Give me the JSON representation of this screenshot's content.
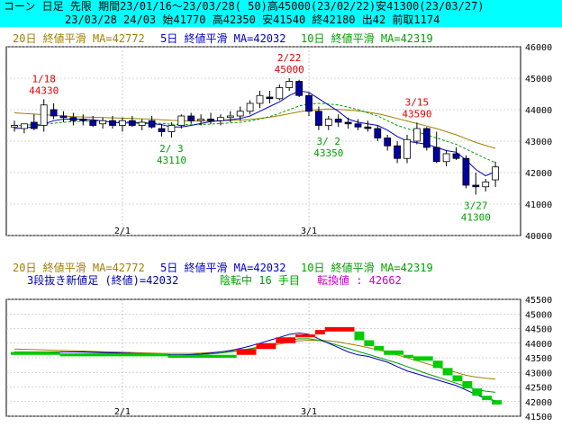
{
  "header": {
    "line1": "コーン 日足 先限 期間23/01/16～23/03/28( 50)高45000(23/02/22)安41300(23/03/27)",
    "line2": "23/03/28 24/03 始41770 高42350 安41540 終42180 出42 前取1174"
  },
  "colors": {
    "up_candle": "#ffffff",
    "down_candle": "#0000a0",
    "ma20": "#a08000",
    "ma5": "#0000c0",
    "ma10": "#00a000",
    "red_annotation": "#e00000",
    "green_annotation": "#00a000",
    "brick_up": "#ff0000",
    "brick_down": "#00cc00",
    "brick_turn": "#cc00cc",
    "header_bg": "#00ffff"
  },
  "upper_legend": {
    "ma20": "20日 終値平滑 MA=42772",
    "ma5": "5日 終値平滑 MA=42032",
    "ma10": "10日 終値平滑 MA=42319"
  },
  "lower_legend": {
    "ma20": "20日 終値平滑 MA=42772",
    "ma5": "5日 終値平滑 MA=42032",
    "ma10": "10日 終値平滑 MA=42319",
    "sanbon_label": "3段抜き新値足 (終値)=42032",
    "sanbon_state": "陰転中  16 手目",
    "sanbon_turn": "転換値 : 42662"
  },
  "annotations": [
    {
      "date": "1/18",
      "value": "44330",
      "color": "red",
      "position": "above"
    },
    {
      "date": "2/ 3",
      "value": "43110",
      "color": "green",
      "position": "below"
    },
    {
      "date": "2/22",
      "value": "45000",
      "color": "red",
      "position": "above"
    },
    {
      "date": "3/ 2",
      "value": "43350",
      "color": "green",
      "position": "below"
    },
    {
      "date": "3/15",
      "value": "43590",
      "color": "red",
      "position": "above"
    },
    {
      "date": "3/27",
      "value": "41300",
      "color": "green",
      "position": "below"
    }
  ],
  "chart_data": [
    {
      "type": "candlestick",
      "x_labels": [
        "2/1",
        "3/1"
      ],
      "ylim": [
        40000,
        46000
      ],
      "yticks": [
        "46000",
        "45000",
        "44000",
        "43000",
        "42000",
        "41000",
        "40000"
      ],
      "grid": true,
      "candles": [
        {
          "o": 43450,
          "h": 43650,
          "l": 43300,
          "c": 43500
        },
        {
          "o": 43400,
          "h": 43550,
          "l": 43250,
          "c": 43550
        },
        {
          "o": 43600,
          "h": 43850,
          "l": 43350,
          "c": 43400
        },
        {
          "o": 43500,
          "h": 44330,
          "l": 43300,
          "c": 44150
        },
        {
          "o": 44000,
          "h": 44200,
          "l": 43700,
          "c": 43800
        },
        {
          "o": 43800,
          "h": 43950,
          "l": 43600,
          "c": 43750
        },
        {
          "o": 43750,
          "h": 43900,
          "l": 43500,
          "c": 43650
        },
        {
          "o": 43700,
          "h": 43850,
          "l": 43500,
          "c": 43650
        },
        {
          "o": 43650,
          "h": 43800,
          "l": 43450,
          "c": 43500
        },
        {
          "o": 43550,
          "h": 43750,
          "l": 43400,
          "c": 43650
        },
        {
          "o": 43650,
          "h": 43800,
          "l": 43400,
          "c": 43500
        },
        {
          "o": 43500,
          "h": 43750,
          "l": 43300,
          "c": 43650
        },
        {
          "o": 43650,
          "h": 43800,
          "l": 43450,
          "c": 43500
        },
        {
          "o": 43500,
          "h": 43700,
          "l": 43350,
          "c": 43600
        },
        {
          "o": 43650,
          "h": 43800,
          "l": 43400,
          "c": 43450
        },
        {
          "o": 43400,
          "h": 43550,
          "l": 43150,
          "c": 43300
        },
        {
          "o": 43300,
          "h": 43600,
          "l": 43110,
          "c": 43500
        },
        {
          "o": 43500,
          "h": 43850,
          "l": 43400,
          "c": 43800
        },
        {
          "o": 43800,
          "h": 43900,
          "l": 43550,
          "c": 43650
        },
        {
          "o": 43650,
          "h": 43850,
          "l": 43500,
          "c": 43700
        },
        {
          "o": 43700,
          "h": 43900,
          "l": 43550,
          "c": 43650
        },
        {
          "o": 43650,
          "h": 43850,
          "l": 43500,
          "c": 43750
        },
        {
          "o": 43750,
          "h": 43950,
          "l": 43600,
          "c": 43800
        },
        {
          "o": 43800,
          "h": 44100,
          "l": 43650,
          "c": 43950
        },
        {
          "o": 43950,
          "h": 44300,
          "l": 43850,
          "c": 44200
        },
        {
          "o": 44200,
          "h": 44600,
          "l": 44050,
          "c": 44450
        },
        {
          "o": 44400,
          "h": 44600,
          "l": 44200,
          "c": 44350
        },
        {
          "o": 44350,
          "h": 44800,
          "l": 44300,
          "c": 44700
        },
        {
          "o": 44700,
          "h": 45000,
          "l": 44600,
          "c": 44900
        },
        {
          "o": 44900,
          "h": 44950,
          "l": 44400,
          "c": 44450
        },
        {
          "o": 44450,
          "h": 44550,
          "l": 43800,
          "c": 43950
        },
        {
          "o": 43950,
          "h": 44100,
          "l": 43350,
          "c": 43500
        },
        {
          "o": 43500,
          "h": 43800,
          "l": 43350,
          "c": 43700
        },
        {
          "o": 43700,
          "h": 43850,
          "l": 43450,
          "c": 43600
        },
        {
          "o": 43600,
          "h": 43750,
          "l": 43400,
          "c": 43550
        },
        {
          "o": 43550,
          "h": 43700,
          "l": 43350,
          "c": 43450
        },
        {
          "o": 43450,
          "h": 43650,
          "l": 43300,
          "c": 43400
        },
        {
          "o": 43400,
          "h": 43500,
          "l": 43000,
          "c": 43100
        },
        {
          "o": 43100,
          "h": 43200,
          "l": 42700,
          "c": 42850
        },
        {
          "o": 42850,
          "h": 43000,
          "l": 42300,
          "c": 42450
        },
        {
          "o": 42450,
          "h": 43200,
          "l": 42300,
          "c": 43050
        },
        {
          "o": 43000,
          "h": 43590,
          "l": 42900,
          "c": 43400
        },
        {
          "o": 43400,
          "h": 43450,
          "l": 42700,
          "c": 42800
        },
        {
          "o": 42800,
          "h": 43300,
          "l": 42300,
          "c": 42350
        },
        {
          "o": 42350,
          "h": 42700,
          "l": 42200,
          "c": 42600
        },
        {
          "o": 42600,
          "h": 42800,
          "l": 42400,
          "c": 42450
        },
        {
          "o": 42450,
          "h": 42550,
          "l": 41500,
          "c": 41600
        },
        {
          "o": 41600,
          "h": 42000,
          "l": 41300,
          "c": 41550
        },
        {
          "o": 41550,
          "h": 41800,
          "l": 41400,
          "c": 41700
        },
        {
          "o": 41770,
          "h": 42350,
          "l": 41540,
          "c": 42180
        }
      ],
      "ma5": [
        43400,
        43420,
        43450,
        43550,
        43650,
        43700,
        43700,
        43700,
        43680,
        43640,
        43600,
        43580,
        43580,
        43570,
        43560,
        43520,
        43450,
        43450,
        43500,
        43560,
        43620,
        43650,
        43680,
        43720,
        43800,
        43950,
        44100,
        44250,
        44450,
        44600,
        44550,
        44350,
        44150,
        43950,
        43700,
        43600,
        43550,
        43500,
        43350,
        43150,
        43000,
        42950,
        42900,
        42800,
        42700,
        42650,
        42400,
        42100,
        41900,
        42032
      ],
      "ma10": [
        43500,
        43510,
        43520,
        43540,
        43570,
        43600,
        43620,
        43630,
        43640,
        43640,
        43630,
        43620,
        43600,
        43590,
        43580,
        43560,
        43540,
        43520,
        43520,
        43530,
        43540,
        43560,
        43580,
        43600,
        43640,
        43700,
        43780,
        43880,
        44000,
        44120,
        44180,
        44200,
        44180,
        44150,
        44080,
        44000,
        43900,
        43800,
        43650,
        43500,
        43400,
        43300,
        43200,
        43100,
        43000,
        42900,
        42750,
        42600,
        42450,
        42319
      ],
      "ma20": [
        43900,
        43880,
        43860,
        43840,
        43820,
        43800,
        43780,
        43770,
        43760,
        43750,
        43740,
        43730,
        43720,
        43710,
        43700,
        43680,
        43660,
        43650,
        43640,
        43640,
        43640,
        43650,
        43660,
        43670,
        43690,
        43720,
        43760,
        43810,
        43870,
        43930,
        43980,
        44010,
        44020,
        44010,
        43990,
        43960,
        43920,
        43870,
        43800,
        43720,
        43640,
        43560,
        43480,
        43400,
        43300,
        43200,
        43080,
        42960,
        42860,
        42772
      ]
    },
    {
      "type": "brick",
      "x_labels": [
        "2/1",
        "3/1"
      ],
      "ylim": [
        41500,
        45500
      ],
      "yticks": [
        "45500",
        "45000",
        "44500",
        "44000",
        "43500",
        "43000",
        "42500",
        "42000",
        "41500"
      ],
      "grid": true,
      "bricks": [
        {
          "start": 0,
          "end": 5,
          "lo": 43600,
          "hi": 43700,
          "dir": "down"
        },
        {
          "start": 5,
          "end": 16,
          "lo": 43550,
          "hi": 43650,
          "dir": "down"
        },
        {
          "start": 16,
          "end": 23,
          "lo": 43500,
          "hi": 43600,
          "dir": "down"
        },
        {
          "start": 23,
          "end": 25,
          "lo": 43600,
          "hi": 43800,
          "dir": "up"
        },
        {
          "start": 25,
          "end": 27,
          "lo": 43800,
          "hi": 44000,
          "dir": "up"
        },
        {
          "start": 27,
          "end": 29,
          "lo": 44000,
          "hi": 44200,
          "dir": "up"
        },
        {
          "start": 29,
          "end": 31,
          "lo": 44200,
          "hi": 44300,
          "dir": "up"
        },
        {
          "start": 31,
          "end": 32,
          "lo": 44300,
          "hi": 44450,
          "dir": "up"
        },
        {
          "start": 32,
          "end": 35,
          "lo": 44400,
          "hi": 44550,
          "dir": "up"
        },
        {
          "start": 35,
          "end": 36,
          "lo": 44100,
          "hi": 44400,
          "dir": "down"
        },
        {
          "start": 36,
          "end": 37,
          "lo": 43900,
          "hi": 44100,
          "dir": "down"
        },
        {
          "start": 37,
          "end": 38,
          "lo": 43750,
          "hi": 43900,
          "dir": "down"
        },
        {
          "start": 38,
          "end": 40,
          "lo": 43600,
          "hi": 43750,
          "dir": "down"
        },
        {
          "start": 40,
          "end": 41,
          "lo": 43500,
          "hi": 43600,
          "dir": "down"
        },
        {
          "start": 41,
          "end": 43,
          "lo": 43400,
          "hi": 43550,
          "dir": "down"
        },
        {
          "start": 43,
          "end": 44,
          "lo": 43150,
          "hi": 43400,
          "dir": "down"
        },
        {
          "start": 44,
          "end": 45,
          "lo": 42900,
          "hi": 43150,
          "dir": "down"
        },
        {
          "start": 45,
          "end": 46,
          "lo": 42700,
          "hi": 42900,
          "dir": "down"
        },
        {
          "start": 46,
          "end": 47,
          "lo": 42450,
          "hi": 42700,
          "dir": "down"
        },
        {
          "start": 47,
          "end": 48,
          "lo": 42200,
          "hi": 42450,
          "dir": "down"
        },
        {
          "start": 48,
          "end": 49,
          "lo": 42050,
          "hi": 42200,
          "dir": "down"
        },
        {
          "start": 49,
          "end": 51,
          "lo": 41900,
          "hi": 42050,
          "dir": "down"
        }
      ],
      "ma5": [
        43650,
        43660,
        43670,
        43680,
        43690,
        43700,
        43700,
        43700,
        43690,
        43680,
        43670,
        43660,
        43650,
        43640,
        43630,
        43620,
        43600,
        43600,
        43610,
        43630,
        43660,
        43700,
        43750,
        43820,
        43900,
        44000,
        44100,
        44200,
        44300,
        44350,
        44300,
        44150,
        44000,
        43850,
        43700,
        43600,
        43550,
        43450,
        43350,
        43200,
        43050,
        42950,
        42850,
        42750,
        42650,
        42550,
        42400,
        42250,
        42100,
        42032
      ],
      "ma10": [
        43700,
        43700,
        43700,
        43700,
        43700,
        43700,
        43700,
        43690,
        43680,
        43670,
        43660,
        43650,
        43640,
        43630,
        43620,
        43610,
        43600,
        43600,
        43600,
        43610,
        43630,
        43660,
        43700,
        43750,
        43810,
        43880,
        43950,
        44020,
        44100,
        44150,
        44150,
        44100,
        44020,
        43920,
        43820,
        43720,
        43620,
        43520,
        43420,
        43320,
        43200,
        43080,
        42960,
        42850,
        42740,
        42630,
        42520,
        42420,
        42360,
        42319
      ],
      "ma20": [
        43800,
        43790,
        43780,
        43770,
        43760,
        43750,
        43740,
        43730,
        43720,
        43710,
        43700,
        43690,
        43680,
        43670,
        43660,
        43650,
        43650,
        43650,
        43650,
        43660,
        43680,
        43700,
        43730,
        43760,
        43800,
        43850,
        43910,
        43970,
        44030,
        44080,
        44100,
        44100,
        44080,
        44040,
        43980,
        43920,
        43850,
        43770,
        43690,
        43600,
        43500,
        43400,
        43300,
        43200,
        43100,
        43000,
        42900,
        42840,
        42800,
        42772
      ]
    }
  ]
}
